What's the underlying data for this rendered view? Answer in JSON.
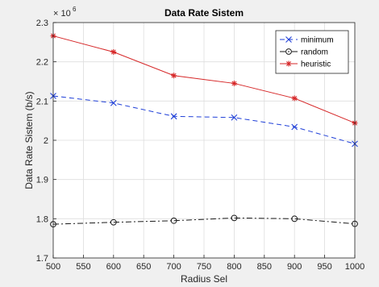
{
  "chart_data": {
    "type": "line",
    "title": "Data Rate Sistem",
    "xlabel": "Radius Sel",
    "ylabel": "Data Rate Sistem (b/s)",
    "exponent_label": "× 10",
    "exponent_power": "6",
    "x": [
      500,
      600,
      700,
      800,
      900,
      1000
    ],
    "xlim": [
      500,
      1000
    ],
    "ylim": [
      1.7,
      2.3
    ],
    "xticks": [
      "500",
      "550",
      "600",
      "650",
      "700",
      "750",
      "800",
      "850",
      "900",
      "950",
      "1000"
    ],
    "yticks": [
      "1.7",
      "1.8",
      "1.9",
      "2",
      "2.1",
      "2.2",
      "2.3"
    ],
    "grid": true,
    "legend_position": "top-right",
    "series": [
      {
        "name": "minimum",
        "values": [
          2.113,
          2.095,
          2.061,
          2.058,
          2.034,
          1.991
        ],
        "color": "#1f3fd8",
        "dash": "6,4",
        "marker": "x"
      },
      {
        "name": "random",
        "values": [
          1.786,
          1.791,
          1.795,
          1.802,
          1.8,
          1.787
        ],
        "color": "#1a1a1a",
        "dash": "7,3,2,3",
        "marker": "o"
      },
      {
        "name": "heuristic",
        "values": [
          2.266,
          2.225,
          2.165,
          2.145,
          2.107,
          2.044
        ],
        "color": "#d62728",
        "dash": "",
        "marker": "*"
      }
    ]
  }
}
